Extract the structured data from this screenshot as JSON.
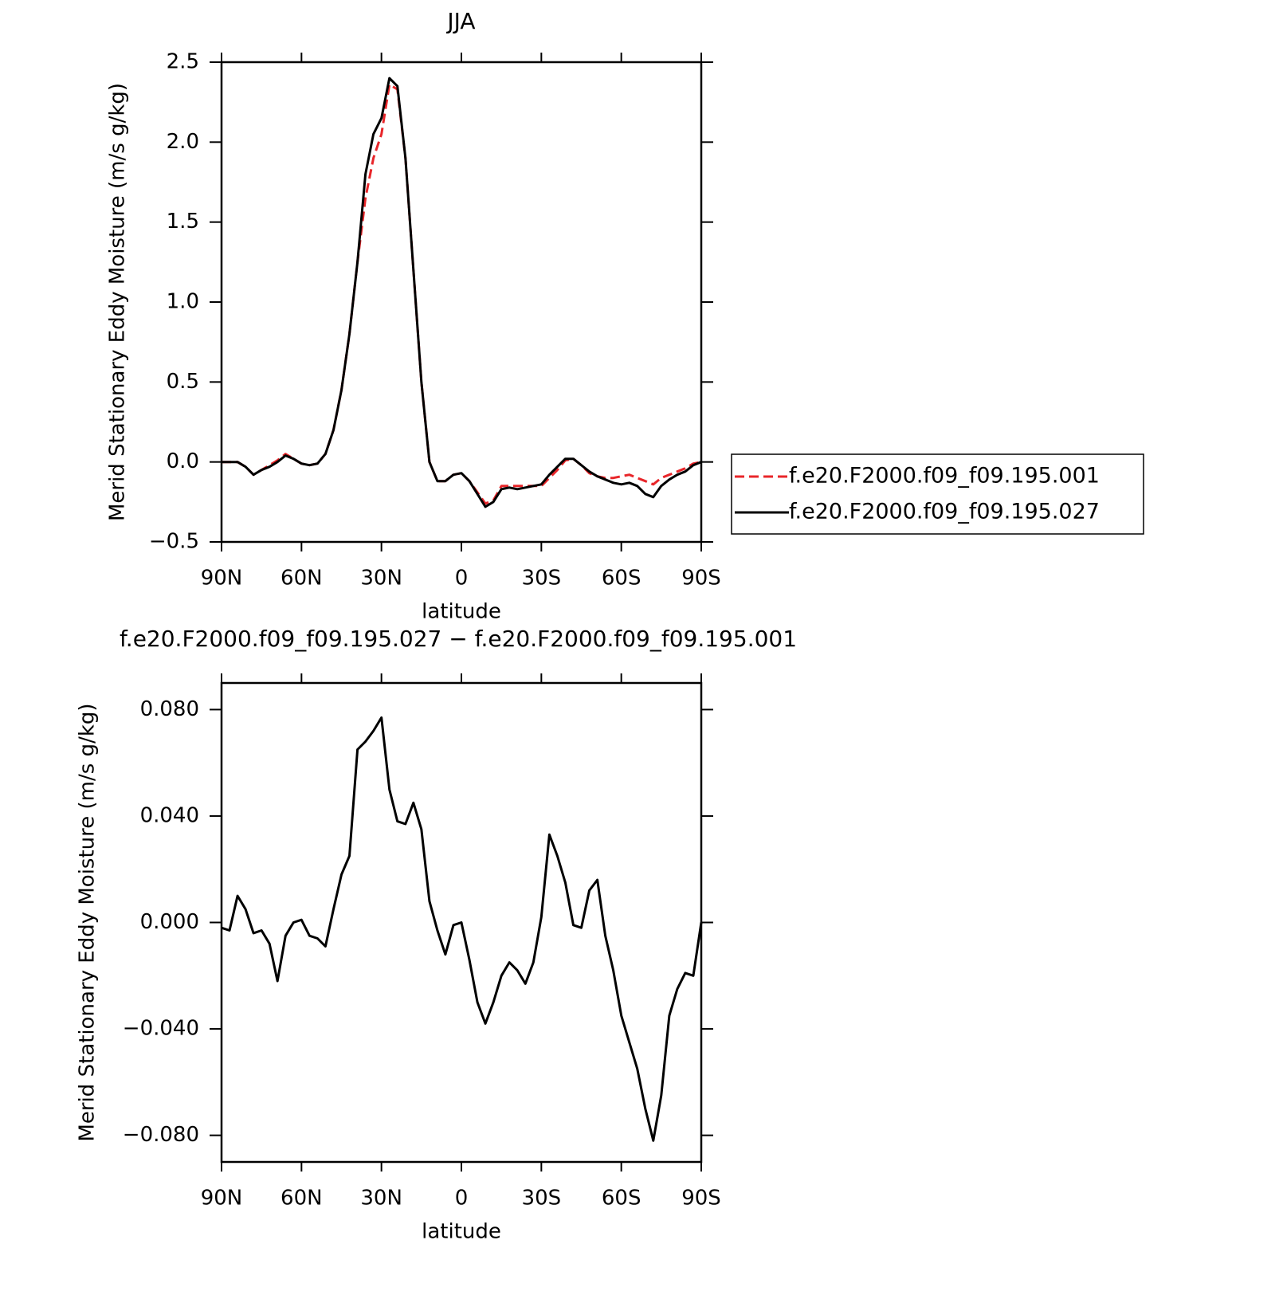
{
  "chart_data": [
    {
      "type": "line",
      "title": "JJA",
      "xlabel": "latitude",
      "ylabel": "Merid Stationary Eddy Moisture (m/s g/kg)",
      "x": [
        90,
        87,
        84,
        81,
        78,
        75,
        72,
        69,
        66,
        63,
        60,
        57,
        54,
        51,
        48,
        45,
        42,
        39,
        36,
        33,
        30,
        27,
        24,
        21,
        18,
        15,
        12,
        9,
        6,
        3,
        0,
        -3,
        -6,
        -9,
        -12,
        -15,
        -18,
        -21,
        -24,
        -27,
        -30,
        -33,
        -36,
        -39,
        -42,
        -45,
        -48,
        -51,
        -54,
        -57,
        -60,
        -63,
        -66,
        -69,
        -72,
        -75,
        -78,
        -81,
        -84,
        -87,
        -90
      ],
      "series": [
        {
          "name": "f.e20.F2000.f09_f09.195.001",
          "color": "#e8262a",
          "linestyle": "dashed",
          "values": [
            0,
            0,
            0,
            -0.03,
            -0.08,
            -0.05,
            -0.02,
            0.01,
            0.05,
            0.02,
            -0.01,
            -0.02,
            -0.01,
            0.05,
            0.2,
            0.45,
            0.8,
            1.25,
            1.65,
            1.9,
            2.05,
            2.36,
            2.33,
            1.9,
            1.2,
            0.5,
            0,
            -0.12,
            -0.12,
            -0.08,
            -0.07,
            -0.12,
            -0.19,
            -0.26,
            -0.24,
            -0.15,
            -0.15,
            -0.15,
            -0.15,
            -0.15,
            -0.15,
            -0.1,
            -0.05,
            0.01,
            0.02,
            -0.02,
            -0.07,
            -0.09,
            -0.1,
            -0.1,
            -0.09,
            -0.08,
            -0.1,
            -0.12,
            -0.14,
            -0.1,
            -0.08,
            -0.06,
            -0.04,
            -0.01,
            0
          ]
        },
        {
          "name": "f.e20.F2000.f09_f09.195.027",
          "color": "#000000",
          "linestyle": "solid",
          "values": [
            0,
            0,
            0,
            -0.03,
            -0.08,
            -0.05,
            -0.03,
            0,
            0.04,
            0.02,
            -0.01,
            -0.02,
            -0.01,
            0.05,
            0.2,
            0.45,
            0.8,
            1.25,
            1.8,
            2.05,
            2.15,
            2.4,
            2.35,
            1.9,
            1.2,
            0.5,
            0,
            -0.12,
            -0.12,
            -0.08,
            -0.07,
            -0.12,
            -0.2,
            -0.28,
            -0.25,
            -0.17,
            -0.16,
            -0.17,
            -0.16,
            -0.15,
            -0.14,
            -0.08,
            -0.03,
            0.02,
            0.02,
            -0.02,
            -0.06,
            -0.09,
            -0.11,
            -0.13,
            -0.14,
            -0.13,
            -0.15,
            -0.2,
            -0.22,
            -0.15,
            -0.11,
            -0.08,
            -0.06,
            -0.02,
            0
          ]
        }
      ],
      "xlim": [
        90,
        -90
      ],
      "xticks": [
        {
          "value": 90,
          "label": "90N"
        },
        {
          "value": 60,
          "label": "60N"
        },
        {
          "value": 30,
          "label": "30N"
        },
        0,
        {
          "value": -30,
          "label": "30S"
        },
        {
          "value": -60,
          "label": "60S"
        },
        {
          "value": -90,
          "label": "90S"
        }
      ],
      "ylim": [
        -0.5,
        2.5
      ],
      "yticks": [
        {
          "value": -0.5,
          "label": "−0.5"
        },
        {
          "value": 0,
          "label": "0.0"
        },
        0.5,
        {
          "value": 1,
          "label": "1.0"
        },
        1.5,
        {
          "value": 2,
          "label": "2.0"
        },
        2.5
      ],
      "legend": "right"
    },
    {
      "type": "line",
      "title": "f.e20.F2000.f09_f09.195.027 − f.e20.F2000.f09_f09.195.001",
      "xlabel": "latitude",
      "ylabel": "Merid Stationary Eddy Moisture (m/s g/kg)",
      "x": [
        90,
        87,
        84,
        81,
        78,
        75,
        72,
        69,
        66,
        63,
        60,
        57,
        54,
        51,
        48,
        45,
        42,
        39,
        36,
        33,
        30,
        27,
        24,
        21,
        18,
        15,
        12,
        9,
        6,
        3,
        0,
        -3,
        -6,
        -9,
        -12,
        -15,
        -18,
        -21,
        -24,
        -27,
        -30,
        -33,
        -36,
        -39,
        -42,
        -45,
        -48,
        -51,
        -54,
        -57,
        -60,
        -63,
        -66,
        -69,
        -72,
        -75,
        -78,
        -81,
        -84,
        -87,
        -90
      ],
      "color": "#000000",
      "values": [
        -0.002,
        -0.003,
        0.01,
        0.005,
        -0.004,
        -0.003,
        -0.008,
        -0.022,
        -0.005,
        0,
        0.001,
        -0.005,
        -0.006,
        -0.009,
        0.005,
        0.018,
        0.025,
        0.065,
        0.068,
        0.072,
        0.077,
        0.05,
        0.038,
        0.037,
        0.045,
        0.035,
        0.008,
        -0.003,
        -0.012,
        -0.001,
        0,
        -0.014,
        -0.03,
        -0.038,
        -0.03,
        -0.02,
        -0.015,
        -0.018,
        -0.023,
        -0.015,
        0.002,
        0.033,
        0.025,
        0.015,
        -0.001,
        -0.002,
        0.012,
        0.016,
        -0.005,
        -0.018,
        -0.035,
        -0.045,
        -0.055,
        -0.07,
        -0.082,
        -0.065,
        -0.035,
        -0.025,
        -0.019,
        -0.02,
        0
      ],
      "xlim": [
        90,
        -90
      ],
      "xticks": [
        {
          "value": 90,
          "label": "90N"
        },
        {
          "value": 60,
          "label": "60N"
        },
        {
          "value": 30,
          "label": "30N"
        },
        0,
        {
          "value": -30,
          "label": "30S"
        },
        {
          "value": -60,
          "label": "60S"
        },
        {
          "value": -90,
          "label": "90S"
        }
      ],
      "ylim": [
        -0.09,
        0.09
      ],
      "yticks": [
        {
          "value": -0.08,
          "label": "−0.080"
        },
        {
          "value": -0.04,
          "label": "−0.040"
        },
        {
          "value": 0,
          "label": "0.000"
        },
        {
          "value": 0.04,
          "label": "0.040"
        },
        {
          "value": 0.08,
          "label": "0.080"
        }
      ]
    }
  ]
}
